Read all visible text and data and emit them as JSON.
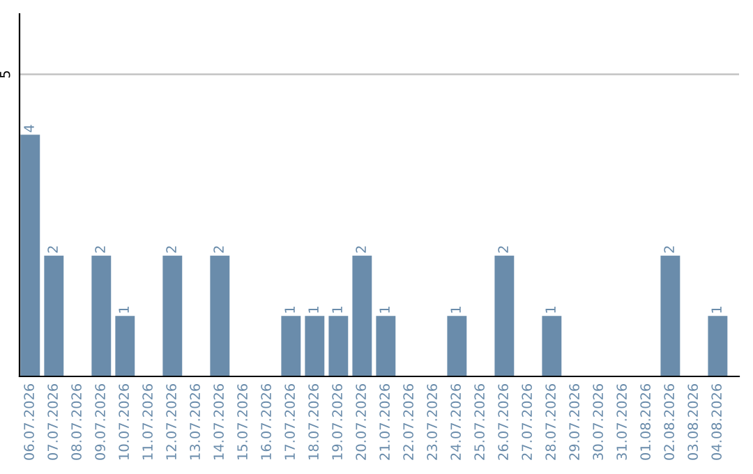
{
  "chart_data": {
    "type": "bar",
    "categories": [
      "06.07.2026",
      "07.07.2026",
      "08.07.2026",
      "09.07.2026",
      "10.07.2026",
      "11.07.2026",
      "12.07.2026",
      "13.07.2026",
      "14.07.2026",
      "15.07.2026",
      "16.07.2026",
      "17.07.2026",
      "18.07.2026",
      "19.07.2026",
      "20.07.2026",
      "21.07.2026",
      "22.07.2026",
      "23.07.2026",
      "24.07.2026",
      "25.07.2026",
      "26.07.2026",
      "27.07.2026",
      "28.07.2026",
      "29.07.2026",
      "30.07.2026",
      "31.07.2026",
      "01.08.2026",
      "02.08.2026",
      "03.08.2026",
      "04.08.2026"
    ],
    "values": [
      4,
      2,
      0,
      2,
      1,
      0,
      2,
      0,
      2,
      0,
      0,
      1,
      1,
      1,
      2,
      1,
      0,
      0,
      1,
      0,
      2,
      0,
      1,
      0,
      0,
      0,
      0,
      2,
      0,
      1
    ],
    "value_labels": [
      "4",
      "2",
      null,
      "2",
      "1",
      null,
      "2",
      null,
      "2",
      null,
      null,
      "1",
      "1",
      "1",
      "2",
      "1",
      null,
      null,
      "1",
      null,
      "2",
      null,
      "1",
      null,
      null,
      null,
      null,
      "2",
      null,
      "1"
    ],
    "color": "#6a8cab",
    "ylim": [
      0,
      6
    ],
    "yticks": [
      5
    ],
    "grid": "y"
  }
}
